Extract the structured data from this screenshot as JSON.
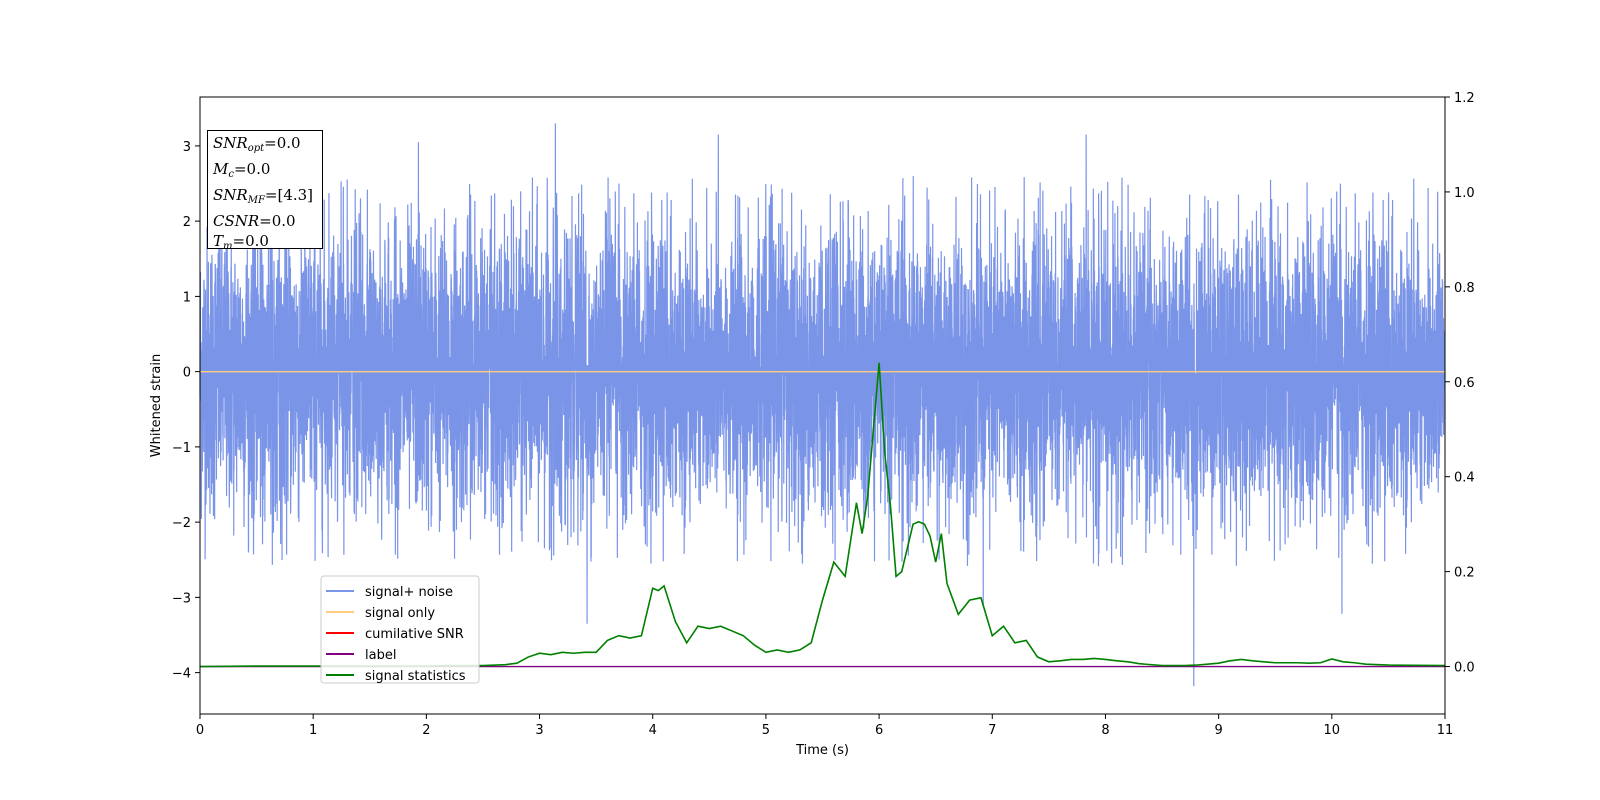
{
  "chart_data": {
    "type": "line",
    "xlabel": "Time (s)",
    "ylabel": "Whitened strain",
    "xlim": [
      0,
      11
    ],
    "ylim": [
      -4.55,
      3.65
    ],
    "y2lim": [
      -0.1,
      1.2
    ],
    "xticks": [
      0,
      1,
      2,
      3,
      4,
      5,
      6,
      7,
      8,
      9,
      10,
      11
    ],
    "yticks": [
      -4,
      -3,
      -2,
      -1,
      0,
      1,
      2,
      3
    ],
    "y2ticks": [
      0.0,
      0.2,
      0.4,
      0.6,
      0.8,
      1.0,
      1.2
    ],
    "legend_position": "lower-left",
    "grid": false,
    "info_box": {
      "snr_opt": "0.0",
      "mc": "0.0",
      "snr_mf": "[4.3]",
      "csnr": "0.0",
      "tm": "0.0"
    },
    "series": [
      {
        "name": "signal+ noise",
        "color": "#7a94e8",
        "axis": "left",
        "description": "whitened noise, roughly gaussian around 0, extremes about -4.2 to 3.3",
        "extremes": [
          {
            "x": 3.14,
            "y": 3.3
          },
          {
            "x": 1.93,
            "y": 3.05
          },
          {
            "x": 4.58,
            "y": 3.15
          },
          {
            "x": 7.83,
            "y": 3.15
          },
          {
            "x": 3.42,
            "y": -3.35
          },
          {
            "x": 8.78,
            "y": -4.18
          },
          {
            "x": 10.09,
            "y": -3.22
          },
          {
            "x": 6.92,
            "y": -3.1
          }
        ]
      },
      {
        "name": "signal only",
        "color": "#ffcc80",
        "axis": "left",
        "x": [
          0,
          11
        ],
        "y": [
          0,
          0
        ]
      },
      {
        "name": "cumilative SNR",
        "color": "#ff0000",
        "axis": "left",
        "x": [],
        "y": []
      },
      {
        "name": "label",
        "color": "#800080",
        "axis": "right",
        "x": [
          0,
          11
        ],
        "y": [
          0,
          0
        ]
      },
      {
        "name": "signal statistics",
        "color": "#008000",
        "axis": "right",
        "x": [
          0,
          0.5,
          1,
          1.5,
          2,
          2.2,
          2.5,
          2.7,
          2.8,
          2.9,
          3.0,
          3.1,
          3.2,
          3.3,
          3.4,
          3.5,
          3.6,
          3.7,
          3.8,
          3.9,
          4.0,
          4.05,
          4.1,
          4.2,
          4.3,
          4.4,
          4.5,
          4.6,
          4.7,
          4.8,
          4.9,
          5.0,
          5.1,
          5.2,
          5.3,
          5.4,
          5.5,
          5.6,
          5.7,
          5.8,
          5.85,
          5.9,
          5.95,
          6.0,
          6.05,
          6.1,
          6.15,
          6.2,
          6.3,
          6.35,
          6.4,
          6.45,
          6.5,
          6.55,
          6.6,
          6.7,
          6.8,
          6.9,
          7.0,
          7.1,
          7.2,
          7.3,
          7.4,
          7.5,
          7.6,
          7.7,
          7.8,
          7.9,
          8.0,
          8.1,
          8.2,
          8.3,
          8.4,
          8.5,
          8.6,
          8.7,
          8.8,
          8.9,
          9.0,
          9.1,
          9.2,
          9.3,
          9.4,
          9.5,
          9.6,
          9.7,
          9.8,
          9.9,
          10.0,
          10.1,
          10.2,
          10.3,
          10.5,
          11.0
        ],
        "y": [
          0.0,
          0.001,
          0.001,
          0.001,
          0.001,
          0.002,
          0.002,
          0.004,
          0.007,
          0.02,
          0.028,
          0.025,
          0.03,
          0.028,
          0.03,
          0.03,
          0.055,
          0.065,
          0.06,
          0.065,
          0.165,
          0.16,
          0.17,
          0.095,
          0.05,
          0.085,
          0.08,
          0.085,
          0.075,
          0.065,
          0.045,
          0.03,
          0.035,
          0.03,
          0.035,
          0.05,
          0.14,
          0.22,
          0.19,
          0.345,
          0.28,
          0.36,
          0.5,
          0.64,
          0.45,
          0.34,
          0.19,
          0.2,
          0.3,
          0.305,
          0.3,
          0.275,
          0.22,
          0.28,
          0.175,
          0.11,
          0.14,
          0.145,
          0.065,
          0.085,
          0.05,
          0.055,
          0.02,
          0.01,
          0.012,
          0.015,
          0.015,
          0.017,
          0.015,
          0.012,
          0.01,
          0.006,
          0.004,
          0.002,
          0.002,
          0.002,
          0.003,
          0.005,
          0.007,
          0.012,
          0.015,
          0.012,
          0.01,
          0.008,
          0.008,
          0.008,
          0.007,
          0.008,
          0.016,
          0.01,
          0.008,
          0.005,
          0.003,
          0.002
        ]
      }
    ]
  }
}
